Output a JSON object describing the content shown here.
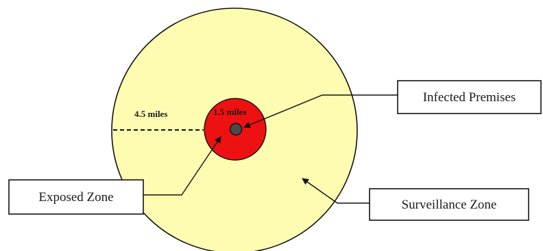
{
  "colors": {
    "surveillance_zone_fill": "#fdfcb0",
    "exposed_zone_fill": "#ee1111",
    "infected_premises_fill": "#4a4a4a",
    "outline": "#111111",
    "background": "#ffffff"
  },
  "labels": {
    "infected_premises": "Infected Premises",
    "exposed_zone": "Exposed Zone",
    "surveillance_zone": "Surveillance Zone"
  },
  "dimensions": {
    "outer_radius": "4.5 miles",
    "inner_radius": "1.5 miles"
  }
}
